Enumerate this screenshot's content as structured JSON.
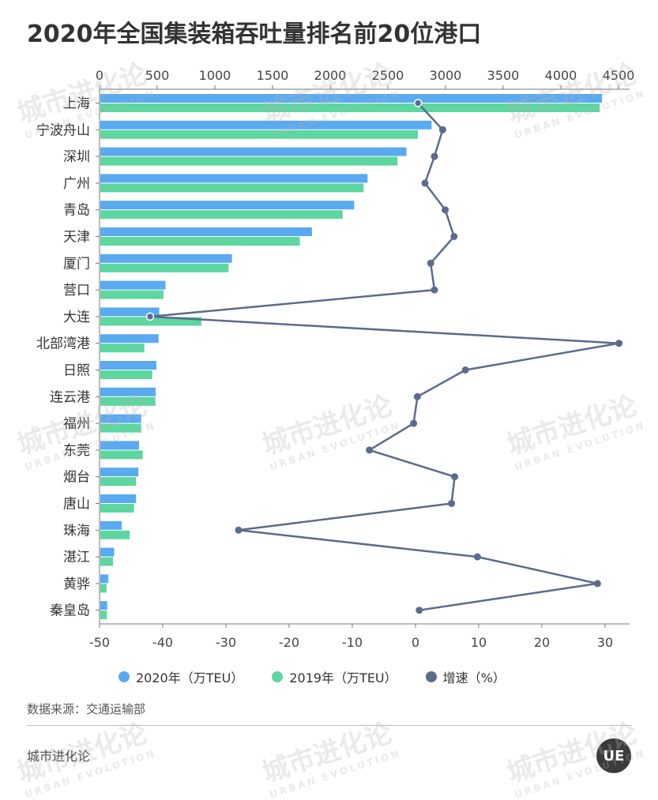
{
  "title": "2020年全国集装箱吞吐量排名前20位港口",
  "source": "数据来源：交通运输部",
  "footer": "城市进化论",
  "logo": "UE",
  "watermark": {
    "cn": "城市进化论",
    "en": "URBAN EVOLUTION"
  },
  "colors": {
    "s2020": "#5aaaf0",
    "s2019": "#5dd6a0",
    "growth": "#5b6b8c",
    "axis": "#666666"
  },
  "legend": [
    {
      "label": "2020年（万TEU）",
      "color": "#5aaaf0"
    },
    {
      "label": "2019年（万TEU）",
      "color": "#5dd6a0"
    },
    {
      "label": "增速（%）",
      "color": "#5b6b8c"
    }
  ],
  "chart_data": {
    "type": "bar",
    "title": "2020年全国集装箱吞吐量排名前20位港口",
    "categories": [
      "上海",
      "宁波舟山",
      "深圳",
      "广州",
      "青岛",
      "天津",
      "厦门",
      "营口",
      "大连",
      "北部湾港",
      "日照",
      "连云港",
      "福州",
      "东莞",
      "烟台",
      "唐山",
      "珠海",
      "湛江",
      "黄骅",
      "秦皇岛"
    ],
    "series": [
      {
        "name": "2020年（万TEU）",
        "type": "bar",
        "axis": "top",
        "values": [
          4350,
          2872,
          2655,
          2317,
          2201,
          1835,
          1141,
          565,
          511,
          505,
          486,
          480,
          354,
          336,
          330,
          310,
          185,
          120,
          70,
          60
        ]
      },
      {
        "name": "2019年（万TEU）",
        "type": "bar",
        "axis": "top",
        "values": [
          4330,
          2753,
          2577,
          2283,
          2101,
          1730,
          1112,
          548,
          876,
          382,
          450,
          478,
          353,
          368,
          310,
          292,
          255,
          110,
          55,
          57
        ]
      },
      {
        "name": "增速（%）",
        "type": "line",
        "axis": "bottom",
        "values": [
          0.4,
          4.3,
          3.0,
          1.5,
          4.7,
          6.1,
          2.4,
          3.0,
          -42.0,
          32.2,
          7.9,
          0.3,
          -0.3,
          -7.3,
          6.2,
          5.7,
          -28.0,
          9.8,
          28.8,
          0.6
        ]
      }
    ],
    "x_top": {
      "range": [
        0,
        4500
      ],
      "ticks": [
        0,
        500,
        1000,
        1500,
        2000,
        2500,
        3000,
        3500,
        4000,
        4500
      ]
    },
    "x_bottom": {
      "range": [
        -50,
        34
      ],
      "ticks": [
        -50,
        -40,
        -30,
        -20,
        -10,
        0,
        10,
        20,
        30
      ]
    },
    "grid": false,
    "legend_position": "bottom"
  }
}
